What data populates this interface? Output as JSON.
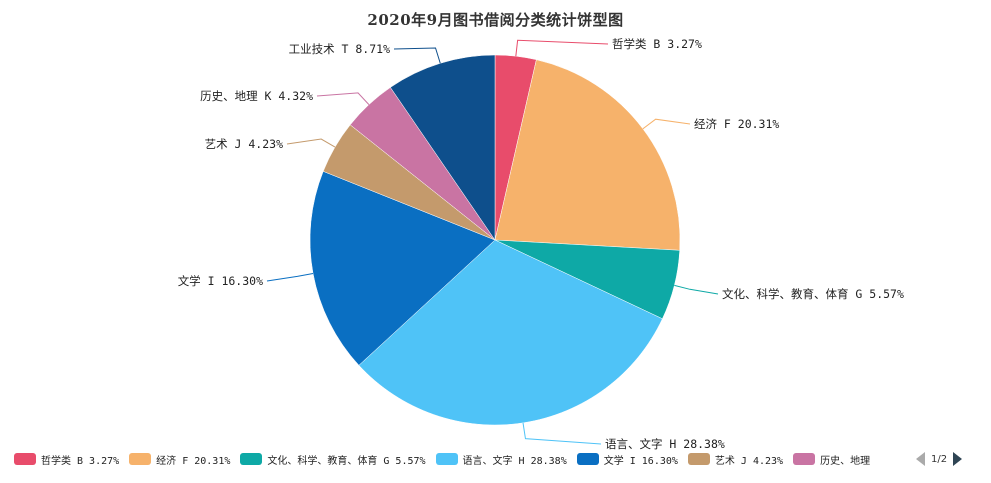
{
  "chart_data": {
    "type": "pie",
    "title": "2020年9月图书借阅分类统计饼型图",
    "slices": [
      {
        "name": "哲学类 B",
        "value": 3.27,
        "label": "哲学类 B 3.27%",
        "color": "#e84c6b"
      },
      {
        "name": "经济 F",
        "value": 20.31,
        "label": "经济 F 20.31%",
        "color": "#f6b26b"
      },
      {
        "name": "文化、科学、教育、体育 G",
        "value": 5.57,
        "label": "文化、科学、教育、体育 G 5.57%",
        "color": "#0ea9a6"
      },
      {
        "name": "语言、文字 H",
        "value": 28.38,
        "label": "语言、文字 H 28.38%",
        "color": "#4fc3f7"
      },
      {
        "name": "文学 I",
        "value": 16.3,
        "label": "文学 I 16.30%",
        "color": "#0a6fc2"
      },
      {
        "name": "艺术 J",
        "value": 4.23,
        "label": "艺术 J 4.23%",
        "color": "#c49a6c"
      },
      {
        "name": "历史、地理 K",
        "value": 4.32,
        "label": "历史、地理 K 4.32%",
        "color": "#c974a3"
      },
      {
        "name": "工业技术 T",
        "value": 8.71,
        "label": "工业技术 T 8.71%",
        "color": "#0e4f8c"
      }
    ],
    "legend": {
      "position": "bottom",
      "visible_items": [
        "哲学类 B 3.27%",
        "经济 F 20.31%",
        "文化、科学、教育、体育 G 5.57%",
        "语言、文字 H 28.38%",
        "文学 I 16.30%",
        "艺术 J 4.23%",
        "历史、地理"
      ],
      "page_indicator": "1/2"
    }
  }
}
